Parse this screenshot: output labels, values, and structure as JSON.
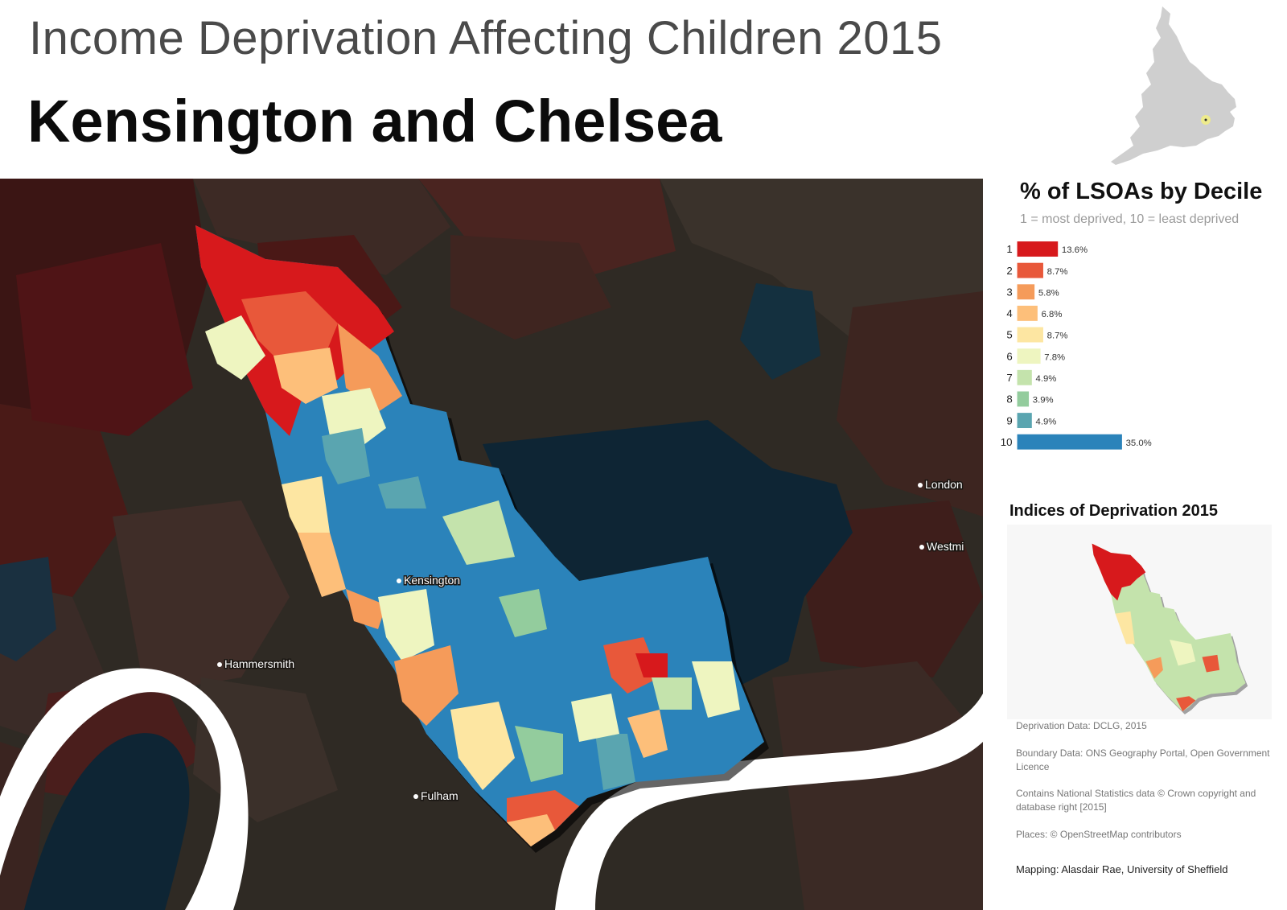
{
  "header": {
    "title": "Income Deprivation Affecting Children 2015",
    "subtitle": "Kensington and Chelsea"
  },
  "legend": {
    "title": "% of LSOAs by Decile",
    "subtitle": "1 = most deprived, 10 = least deprived"
  },
  "chart_data": {
    "type": "bar",
    "orientation": "horizontal",
    "title": "% of LSOAs by Decile",
    "subtitle": "1 = most deprived, 10 = least deprived",
    "categories": [
      "1",
      "2",
      "3",
      "4",
      "5",
      "6",
      "7",
      "8",
      "9",
      "10"
    ],
    "values": [
      13.6,
      8.7,
      5.8,
      6.8,
      8.7,
      7.8,
      4.9,
      3.9,
      4.9,
      35.0
    ],
    "value_labels": [
      "13.6%",
      "8.7%",
      "5.8%",
      "6.8%",
      "8.7%",
      "7.8%",
      "4.9%",
      "3.9%",
      "4.9%",
      "35.0%"
    ],
    "colors": [
      "#d7191c",
      "#e8583a",
      "#f59b5a",
      "#fdbf7a",
      "#fde6a2",
      "#eef5c0",
      "#c4e3ac",
      "#93cc9d",
      "#5aa5b0",
      "#2b83ba"
    ],
    "xlim": [
      0,
      35.0
    ],
    "grid": false,
    "legend": "none"
  },
  "map": {
    "places": [
      "London",
      "Westmi",
      "Kensington",
      "Hammersmith",
      "Fulham"
    ],
    "colors": {
      "background": "#2d2620",
      "river": "#ffffff",
      "water": "#0e2534"
    }
  },
  "inset": {
    "title": "Indices of Deprivation 2015"
  },
  "credits": {
    "data": "Deprivation Data: DCLG, 2015",
    "boundary": "Boundary Data: ONS Geography Portal, Open Government Licence",
    "copyright": "Contains National Statistics data © Crown copyright and database right [2015]",
    "places": "Places: © OpenStreetMap contributors",
    "mapping": "Mapping: Alasdair Rae, University of Sheffield"
  }
}
